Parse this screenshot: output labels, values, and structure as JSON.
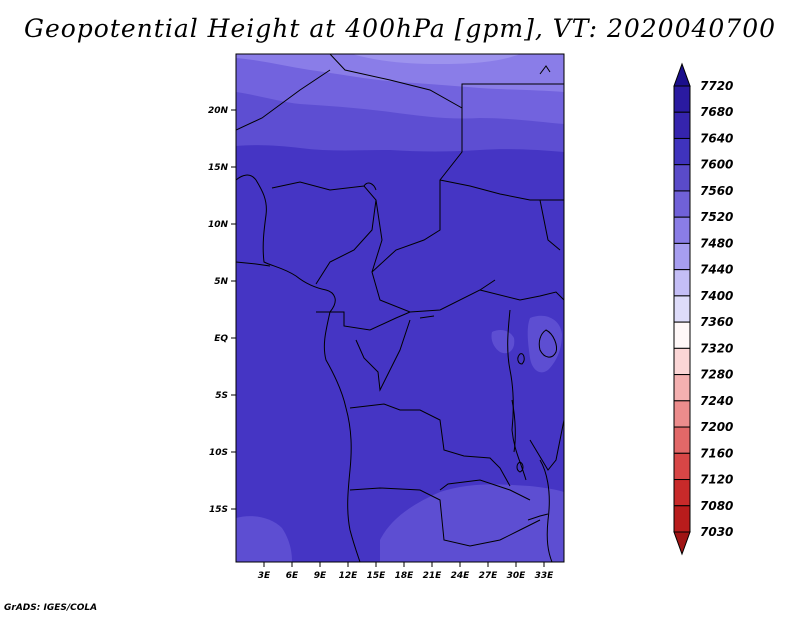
{
  "title": "Geopotential Height at 400hPa [gpm], VT: 2020040700",
  "credit": "GrADS: IGES/COLA",
  "map": {
    "lon_labels": [
      "3E",
      "6E",
      "9E",
      "12E",
      "15E",
      "18E",
      "21E",
      "24E",
      "27E",
      "30E",
      "33E"
    ],
    "lat_labels": [
      "20N",
      "15N",
      "10N",
      "5N",
      "EQ",
      "5S",
      "10S",
      "15S"
    ]
  },
  "colorbar": {
    "levels": [
      "7720",
      "7680",
      "7640",
      "7600",
      "7560",
      "7520",
      "7480",
      "7440",
      "7400",
      "7360",
      "7320",
      "7280",
      "7240",
      "7200",
      "7160",
      "7120",
      "7080",
      "7030"
    ],
    "colors": [
      "#1b0f8c",
      "#2a1aa0",
      "#3524ad",
      "#3f33bd",
      "#5a4bc9",
      "#7061d8",
      "#8a7de6",
      "#a79ef0",
      "#c4bef6",
      "#dedcfa",
      "#fff8f8",
      "#fbd6d6",
      "#f4b0b0",
      "#ec8c8c",
      "#e26868",
      "#d84646",
      "#c82a2a",
      "#b81c1c",
      "#a01414"
    ]
  }
}
